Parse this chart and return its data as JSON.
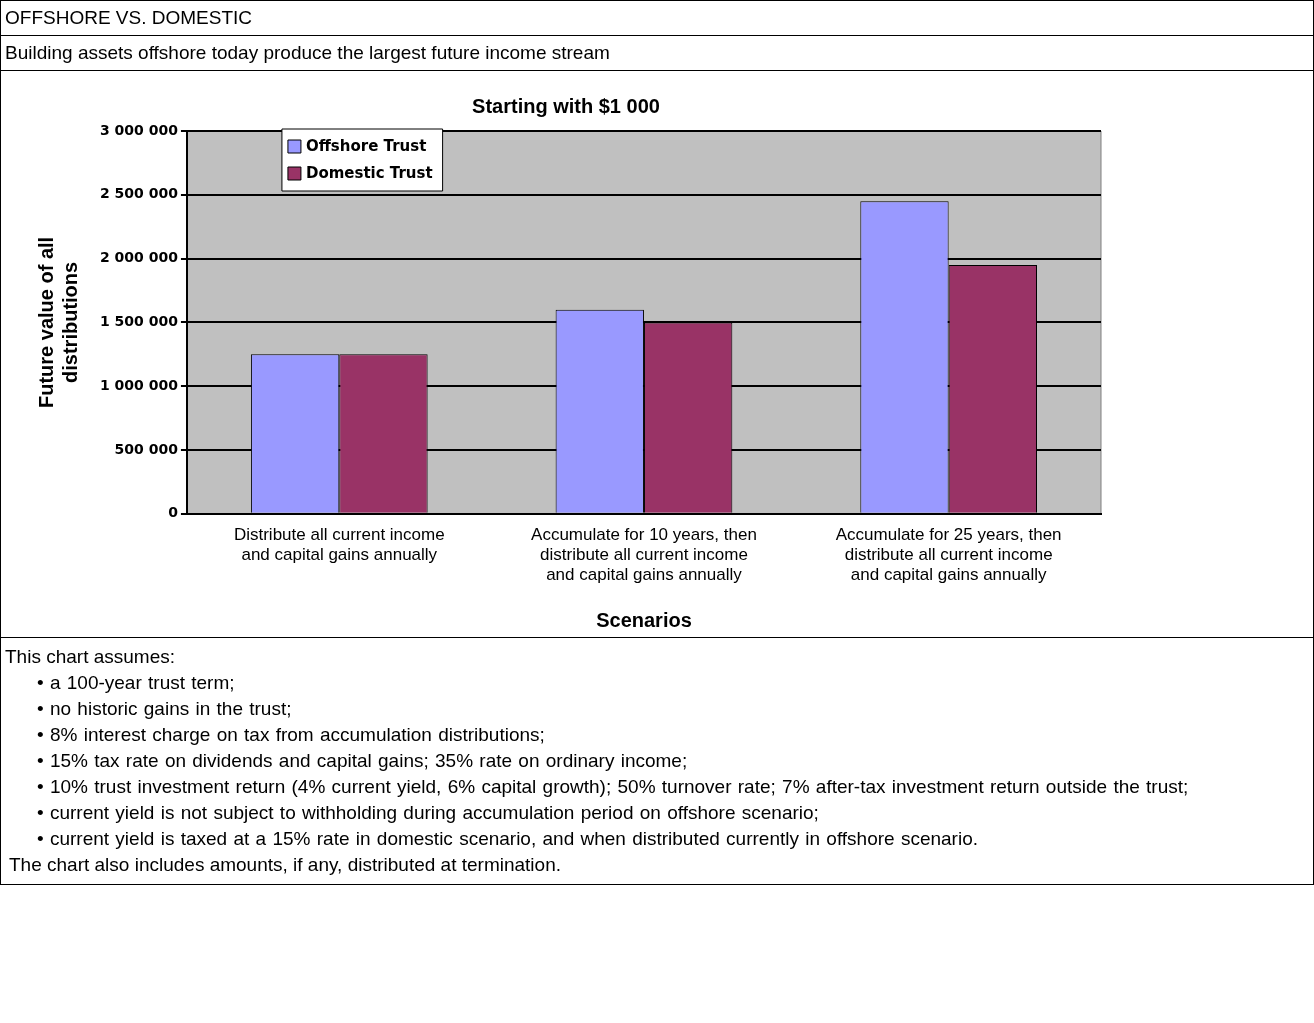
{
  "chart_data": {
    "type": "bar",
    "title": "Starting with $1 000",
    "subtitle": "Building assets offshore today produce the largest future income stream",
    "xlabel": "Scenarios",
    "ylabel": "Future value of all distributions",
    "categories": [
      "Distribute all current income and capital gains annually",
      "Accumulate for 10 years, then distribute all current income and capital gains annually",
      "Accumulate for 25 years, then distribute all current income and capital gains annually"
    ],
    "series": [
      {
        "name": "Offshore Trust",
        "color": "#9999ff",
        "values": [
          1250000,
          1600000,
          2450000
        ]
      },
      {
        "name": "Domestic Trust",
        "color": "#993366",
        "values": [
          1250000,
          1500000,
          1950000
        ]
      }
    ],
    "ylim": [
      0,
      3000000
    ],
    "yticks": [
      {
        "value": 0,
        "label": "0"
      },
      {
        "value": 500000,
        "label": "500 000"
      },
      {
        "value": 1000000,
        "label": "1 000 000"
      },
      {
        "value": 1500000,
        "label": "1 500 000"
      },
      {
        "value": 2000000,
        "label": "2 000 000"
      },
      {
        "value": 2500000,
        "label": "2 500 000"
      },
      {
        "value": 3000000,
        "label": "3 000 000"
      }
    ],
    "grid": "y",
    "legend": "top left",
    "annotations": [
      "OFFSHORE VS. DOMESTIC",
      "This chart assumes:",
      "• a 100-year trust term;",
      "• no historic gains in the trust;",
      "• 8% interest charge on tax from accumulation distributions;",
      "• 15% tax rate on dividends and capital gains; 35% rate on ordinary income;",
      "• 10% trust investment return (4% current yield, 6% capital growth); 50% turnover rate; 7% after-tax investment return outside the trust;",
      "• current yield is not subject to withholding during accumulation period on offshore scenario;",
      "• current yield is taxed at a 15% rate in domestic scenario, and when distributed currently in offshore scenario.",
      "The chart also includes amounts, if any, distributed at termination."
    ]
  }
}
